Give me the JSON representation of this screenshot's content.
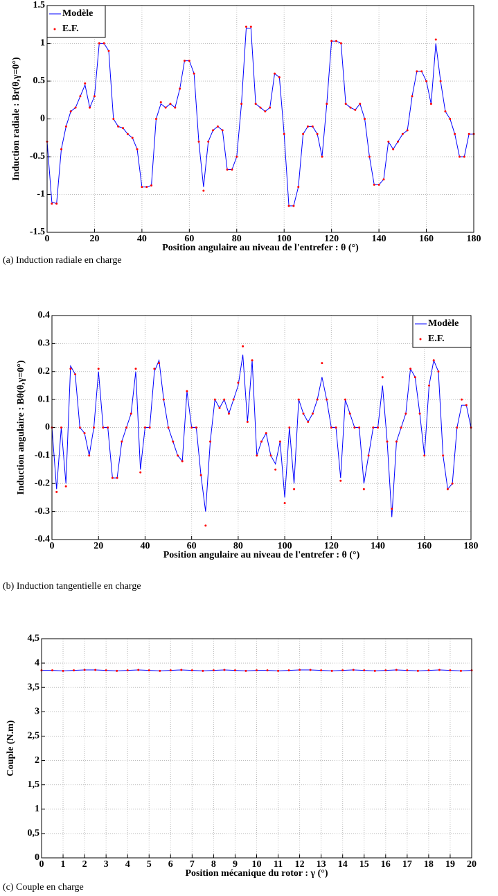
{
  "chart_data": [
    {
      "type": "line",
      "caption": "(a) Induction radiale en charge",
      "xlabel": "Position angulaire au niveau de l'entrefer : θ (°)",
      "ylabel": "Induction radiale : Br(θ,γ=0°)",
      "x": [
        0,
        2,
        4,
        6,
        8,
        10,
        12,
        14,
        16,
        18,
        20,
        22,
        24,
        26,
        28,
        30,
        32,
        34,
        36,
        38,
        40,
        42,
        44,
        46,
        48,
        50,
        52,
        54,
        56,
        58,
        60,
        62,
        64,
        66,
        68,
        70,
        72,
        74,
        76,
        78,
        80,
        82,
        84,
        86,
        88,
        90,
        92,
        94,
        96,
        98,
        100,
        102,
        104,
        106,
        108,
        110,
        112,
        114,
        116,
        118,
        120,
        122,
        124,
        126,
        128,
        130,
        132,
        134,
        136,
        138,
        140,
        142,
        144,
        146,
        148,
        150,
        152,
        154,
        156,
        158,
        160,
        162,
        164,
        166,
        168,
        170,
        172,
        174,
        176,
        178,
        180
      ],
      "series": [
        {
          "name": "Modèle",
          "color": "#0000ff",
          "mode": "line",
          "values": [
            -0.3,
            -1.1,
            -1.12,
            -0.4,
            -0.1,
            0.1,
            0.15,
            0.3,
            0.45,
            0.15,
            0.3,
            1.0,
            1.0,
            0.9,
            0.0,
            -0.1,
            -0.12,
            -0.2,
            -0.25,
            -0.4,
            -0.9,
            -0.9,
            -0.88,
            0.0,
            0.2,
            0.15,
            0.2,
            0.15,
            0.4,
            0.77,
            0.77,
            0.6,
            -0.3,
            -0.9,
            -0.3,
            -0.15,
            -0.1,
            -0.15,
            -0.67,
            -0.67,
            -0.5,
            0.2,
            1.2,
            1.2,
            0.2,
            0.15,
            0.1,
            0.15,
            0.6,
            0.55,
            -0.2,
            -1.15,
            -1.15,
            -0.9,
            -0.2,
            -0.1,
            -0.1,
            -0.2,
            -0.5,
            0.2,
            1.03,
            1.03,
            1.0,
            0.2,
            0.15,
            0.12,
            0.2,
            0.0,
            -0.5,
            -0.87,
            -0.87,
            -0.8,
            -0.3,
            -0.4,
            -0.3,
            -0.2,
            -0.15,
            0.3,
            0.63,
            0.63,
            0.5,
            0.2,
            1.0,
            0.5,
            0.1,
            0.0,
            -0.2,
            -0.5,
            -0.5,
            -0.2,
            -0.2
          ]
        },
        {
          "name": "E.F.",
          "color": "#ff0000",
          "mode": "markers",
          "values": [
            -0.3,
            -1.12,
            -1.12,
            -0.4,
            -0.1,
            0.1,
            0.15,
            0.3,
            0.47,
            0.15,
            0.3,
            1.0,
            1.0,
            0.9,
            0.0,
            -0.1,
            -0.12,
            -0.2,
            -0.25,
            -0.4,
            -0.9,
            -0.9,
            -0.88,
            0.0,
            0.22,
            0.15,
            0.2,
            0.15,
            0.4,
            0.77,
            0.77,
            0.6,
            -0.3,
            -0.95,
            -0.3,
            -0.15,
            -0.1,
            -0.15,
            -0.67,
            -0.67,
            -0.5,
            0.2,
            1.22,
            1.22,
            0.2,
            0.15,
            0.1,
            0.15,
            0.6,
            0.55,
            -0.2,
            -1.15,
            -1.15,
            -0.9,
            -0.2,
            -0.1,
            -0.1,
            -0.2,
            -0.5,
            0.2,
            1.03,
            1.03,
            1.0,
            0.2,
            0.15,
            0.12,
            0.2,
            0.0,
            -0.5,
            -0.87,
            -0.87,
            -0.8,
            -0.3,
            -0.4,
            -0.3,
            -0.2,
            -0.15,
            0.3,
            0.63,
            0.63,
            0.5,
            0.2,
            1.05,
            0.5,
            0.1,
            0.0,
            -0.2,
            -0.5,
            -0.5,
            -0.2,
            -0.2
          ]
        }
      ],
      "xlim": [
        0,
        180
      ],
      "xticks": [
        0,
        20,
        40,
        60,
        80,
        100,
        120,
        140,
        160,
        180
      ],
      "ylim": [
        -1.5,
        1.5
      ],
      "yticks": [
        -1.5,
        -1,
        -0.5,
        0,
        0.5,
        1,
        1.5
      ],
      "grid": true,
      "legend": "upper left"
    },
    {
      "type": "line",
      "caption": "(b) Induction tangentielle en charge",
      "xlabel": "Position angulaire au niveau de l'entrefer : θ (°)",
      "ylabel": "Induction angulaire : Bθ(θ,γ=0°)",
      "x": [
        0,
        2,
        4,
        6,
        8,
        10,
        12,
        14,
        16,
        18,
        20,
        22,
        24,
        26,
        28,
        30,
        32,
        34,
        36,
        38,
        40,
        42,
        44,
        46,
        48,
        50,
        52,
        54,
        56,
        58,
        60,
        62,
        64,
        66,
        68,
        70,
        72,
        74,
        76,
        78,
        80,
        82,
        84,
        86,
        88,
        90,
        92,
        94,
        96,
        98,
        100,
        102,
        104,
        106,
        108,
        110,
        112,
        114,
        116,
        118,
        120,
        122,
        124,
        126,
        128,
        130,
        132,
        134,
        136,
        138,
        140,
        142,
        144,
        146,
        148,
        150,
        152,
        154,
        156,
        158,
        160,
        162,
        164,
        166,
        168,
        170,
        172,
        174,
        176,
        178,
        180
      ],
      "series": [
        {
          "name": "Modèle",
          "color": "#0000ff",
          "mode": "line",
          "values": [
            0,
            -0.22,
            0,
            -0.2,
            0.22,
            0.19,
            0.0,
            -0.02,
            -0.1,
            0.0,
            0.2,
            0.0,
            0.0,
            -0.18,
            -0.18,
            -0.05,
            0.0,
            0.05,
            0.2,
            -0.15,
            0.0,
            0.0,
            0.2,
            0.24,
            0.1,
            0.0,
            -0.05,
            -0.1,
            -0.12,
            0.13,
            0.0,
            0.0,
            -0.17,
            -0.3,
            -0.05,
            0.1,
            0.07,
            0.1,
            0.05,
            0.1,
            0.15,
            0.26,
            0.02,
            0.24,
            -0.1,
            -0.05,
            -0.02,
            -0.1,
            -0.13,
            -0.05,
            -0.25,
            0.0,
            -0.2,
            0.1,
            0.05,
            0.02,
            0.05,
            0.1,
            0.18,
            0.1,
            0.0,
            0.0,
            -0.18,
            0.1,
            0.05,
            0.0,
            0.0,
            -0.2,
            -0.1,
            0.0,
            0.0,
            0.15,
            -0.05,
            -0.32,
            -0.05,
            0.0,
            0.05,
            0.21,
            0.18,
            0.05,
            -0.1,
            0.15,
            0.24,
            0.2,
            -0.1,
            -0.22,
            -0.2,
            0.0,
            0.08,
            0.08,
            0.0
          ]
        },
        {
          "name": "E.F.",
          "color": "#ff0000",
          "mode": "markers",
          "values": [
            0,
            -0.23,
            0,
            -0.21,
            0.21,
            0.19,
            0.0,
            -0.02,
            -0.1,
            0.0,
            0.21,
            0.0,
            0.0,
            -0.18,
            -0.18,
            -0.05,
            0.0,
            0.05,
            0.21,
            -0.16,
            0.0,
            0.0,
            0.21,
            0.23,
            0.1,
            0.0,
            -0.05,
            -0.1,
            -0.12,
            0.13,
            0.0,
            0.0,
            -0.17,
            -0.35,
            -0.05,
            0.1,
            0.07,
            0.1,
            0.05,
            0.1,
            0.16,
            0.29,
            0.02,
            0.24,
            -0.1,
            -0.05,
            -0.02,
            -0.1,
            -0.15,
            -0.05,
            -0.27,
            0.0,
            -0.22,
            0.1,
            0.05,
            0.02,
            0.05,
            0.1,
            0.23,
            0.1,
            0.0,
            0.0,
            -0.19,
            0.1,
            0.05,
            0.0,
            0.0,
            -0.22,
            -0.1,
            0.0,
            0.0,
            0.18,
            -0.05,
            -0.29,
            -0.05,
            0.0,
            0.05,
            0.21,
            0.18,
            0.05,
            -0.1,
            0.15,
            0.24,
            0.2,
            -0.1,
            -0.22,
            -0.2,
            0.0,
            0.1,
            0.08,
            0.0
          ]
        }
      ],
      "xlim": [
        0,
        180
      ],
      "xticks": [
        0,
        20,
        40,
        60,
        80,
        100,
        120,
        140,
        160,
        180
      ],
      "ylim": [
        -0.4,
        0.4
      ],
      "yticks": [
        -0.4,
        -0.3,
        -0.2,
        -0.1,
        0,
        0.1,
        0.2,
        0.3,
        0.4
      ],
      "grid": true,
      "legend": "upper right"
    },
    {
      "type": "line",
      "caption": "(c) Couple en charge",
      "xlabel": "Position mécanique du rotor : γ (°)",
      "ylabel": "Couple (N.m)",
      "x": [
        0,
        0.5,
        1,
        1.5,
        2,
        2.5,
        3,
        3.5,
        4,
        4.5,
        5,
        5.5,
        6,
        6.5,
        7,
        7.5,
        8,
        8.5,
        9,
        9.5,
        10,
        10.5,
        11,
        11.5,
        12,
        12.5,
        13,
        13.5,
        14,
        14.5,
        15,
        15.5,
        16,
        16.5,
        17,
        17.5,
        18,
        18.5,
        19,
        19.5,
        20
      ],
      "series": [
        {
          "color": "#0000ff",
          "mode": "line",
          "values": [
            3.85,
            3.85,
            3.84,
            3.85,
            3.86,
            3.86,
            3.85,
            3.84,
            3.85,
            3.86,
            3.85,
            3.84,
            3.85,
            3.86,
            3.85,
            3.84,
            3.85,
            3.86,
            3.85,
            3.84,
            3.85,
            3.85,
            3.84,
            3.85,
            3.86,
            3.86,
            3.85,
            3.84,
            3.85,
            3.86,
            3.85,
            3.84,
            3.85,
            3.86,
            3.85,
            3.84,
            3.85,
            3.86,
            3.85,
            3.84,
            3.85
          ]
        },
        {
          "color": "#ff0000",
          "mode": "markers",
          "values": [
            3.85,
            3.85,
            3.84,
            3.85,
            3.86,
            3.86,
            3.85,
            3.84,
            3.85,
            3.86,
            3.85,
            3.84,
            3.85,
            3.86,
            3.85,
            3.84,
            3.85,
            3.86,
            3.85,
            3.84,
            3.85,
            3.85,
            3.84,
            3.85,
            3.86,
            3.86,
            3.85,
            3.84,
            3.85,
            3.86,
            3.85,
            3.84,
            3.85,
            3.86,
            3.85,
            3.84,
            3.85,
            3.86,
            3.85,
            3.84,
            3.85
          ]
        }
      ],
      "xlim": [
        0,
        20
      ],
      "xticks": [
        0,
        1,
        2,
        3,
        4,
        5,
        6,
        7,
        8,
        9,
        10,
        11,
        12,
        13,
        14,
        15,
        16,
        17,
        18,
        19,
        20
      ],
      "ylim": [
        0,
        4.5
      ],
      "yticks": [
        0,
        {
          "value": 0.5,
          "label": "0,5"
        },
        1,
        {
          "value": 1.5,
          "label": "1,5"
        },
        2,
        {
          "value": 2.5,
          "label": "2,5"
        },
        3,
        {
          "value": 3.5,
          "label": "3,5"
        },
        4,
        {
          "value": 4.5,
          "label": "4,5"
        }
      ],
      "grid": true
    }
  ]
}
